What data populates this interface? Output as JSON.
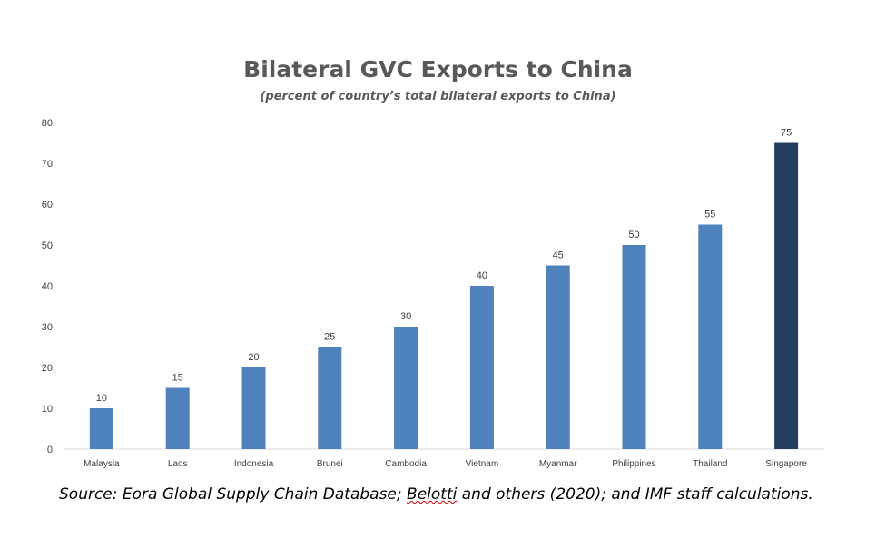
{
  "chart_data": {
    "type": "bar",
    "title": "Bilateral GVC Exports to China",
    "subtitle": "(percent of country’s total bilateral exports to China)",
    "xlabel": "",
    "ylabel": "",
    "categories": [
      "Malaysia",
      "Laos",
      "Indonesia",
      "Brunei",
      "Cambodia",
      "Vietnam",
      "Myanmar",
      "Philippines",
      "Thailand",
      "Singapore"
    ],
    "values": [
      10,
      15,
      20,
      25,
      30,
      40,
      45,
      50,
      55,
      75
    ],
    "ylim": [
      0,
      80
    ],
    "yticks": [
      0,
      10,
      20,
      30,
      40,
      50,
      60,
      70,
      80
    ],
    "grid": false,
    "legend": "none",
    "data_labels": true,
    "highlight_category": "Singapore",
    "colors": {
      "bar": "#4f81bd",
      "highlight": "#243f60",
      "axis": "#d9d9d9",
      "label": "#404040"
    }
  },
  "source": {
    "prefix": "Source: Eora Global Supply Chain Database; ",
    "flagged": "Belotti",
    "suffix": " and others (2020); and IMF staff calculations."
  }
}
